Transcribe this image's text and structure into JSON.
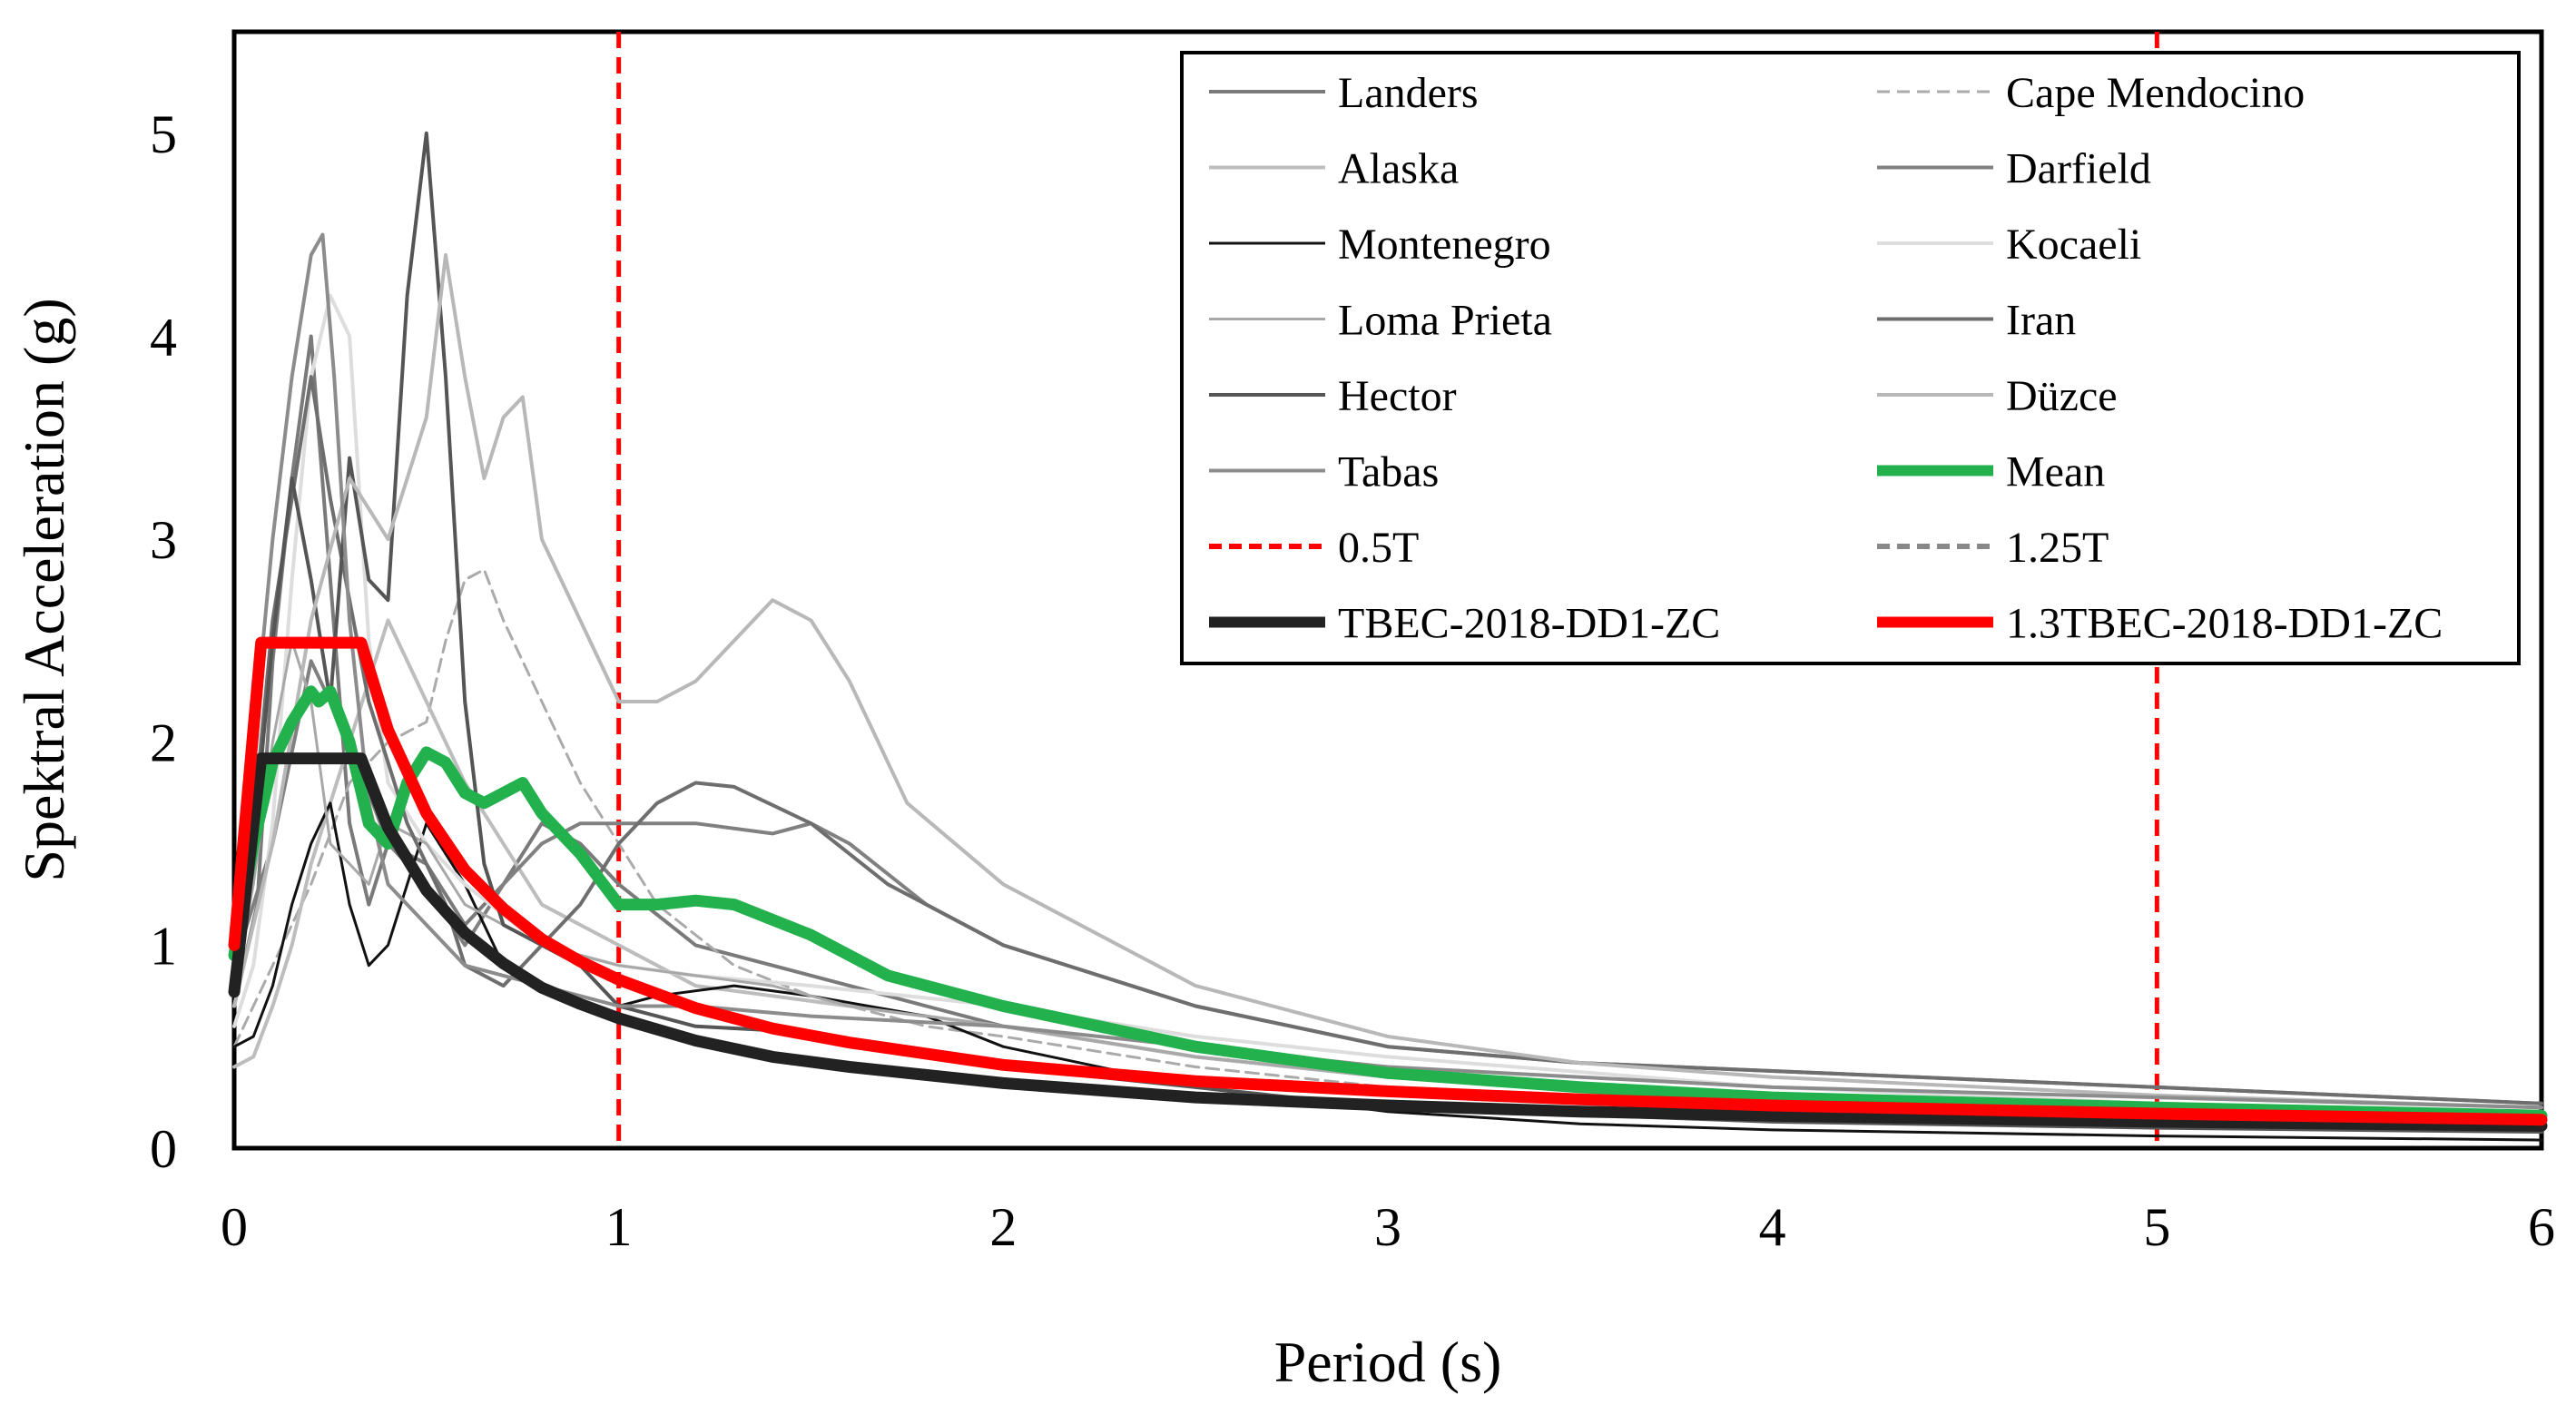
{
  "chart_data": {
    "type": "line",
    "title": "",
    "xlabel": "Period (s)",
    "ylabel": "Spektral Acceleration (g)",
    "xlim": [
      0,
      6
    ],
    "ylim": [
      0,
      5.5
    ],
    "xticks": [
      "0",
      "1",
      "2",
      "3",
      "4",
      "5",
      "6"
    ],
    "yticks": [
      "0",
      "1",
      "2",
      "3",
      "4",
      "5"
    ],
    "grid": false,
    "legend_position": "top-right",
    "vlines": [
      {
        "name": "0.5T",
        "x": 1,
        "color": "#ff0000",
        "dash": true
      },
      {
        "name": "1.25T",
        "x": 5,
        "color": "#ff0000",
        "dash": true
      }
    ],
    "series": [
      {
        "name": "Landers",
        "color": "#7a7a7a",
        "width": 4,
        "dash": false,
        "x": [
          0,
          0.06,
          0.1,
          0.15,
          0.2,
          0.25,
          0.3,
          0.35,
          0.4,
          0.5,
          0.6,
          0.7,
          0.8,
          0.9,
          1.0,
          1.2,
          1.4,
          1.6,
          1.8,
          2.0,
          2.5,
          3.0,
          3.5,
          4.0,
          5.0,
          6.0
        ],
        "values": [
          0.7,
          1.2,
          2.4,
          3.3,
          4.0,
          2.8,
          1.6,
          1.2,
          1.5,
          1.4,
          1.1,
          1.3,
          1.6,
          1.5,
          1.3,
          1.0,
          0.9,
          0.8,
          0.7,
          0.6,
          0.45,
          0.35,
          0.3,
          0.25,
          0.2,
          0.15
        ]
      },
      {
        "name": "Cape Mendocino",
        "color": "#aaaaaa",
        "width": 3,
        "dash": true,
        "x": [
          0,
          0.1,
          0.2,
          0.3,
          0.4,
          0.5,
          0.55,
          0.6,
          0.65,
          0.7,
          0.8,
          0.9,
          1.0,
          1.1,
          1.3,
          1.5,
          1.8,
          2.0,
          2.5,
          3.0,
          4.0,
          5.0,
          6.0
        ],
        "values": [
          0.5,
          0.9,
          1.3,
          1.8,
          2.0,
          2.1,
          2.5,
          2.8,
          2.85,
          2.6,
          2.2,
          1.8,
          1.5,
          1.2,
          0.9,
          0.75,
          0.6,
          0.55,
          0.4,
          0.3,
          0.2,
          0.12,
          0.08
        ]
      },
      {
        "name": "Alaska",
        "color": "#bdbdbd",
        "width": 4,
        "dash": false,
        "x": [
          0,
          0.05,
          0.1,
          0.15,
          0.2,
          0.3,
          0.4,
          0.5,
          0.6,
          0.8,
          1.0,
          1.2,
          1.4,
          1.6,
          2.0,
          2.5,
          3.0,
          4.0,
          5.0,
          6.0
        ],
        "values": [
          0.4,
          0.45,
          0.7,
          1.0,
          1.4,
          2.0,
          2.6,
          2.2,
          1.8,
          1.2,
          1.0,
          0.8,
          0.75,
          0.7,
          0.6,
          0.45,
          0.35,
          0.25,
          0.18,
          0.13
        ]
      },
      {
        "name": "Darfield",
        "color": "#808080",
        "width": 4,
        "dash": false,
        "x": [
          0,
          0.1,
          0.2,
          0.3,
          0.4,
          0.5,
          0.6,
          0.7,
          0.8,
          0.9,
          1.0,
          1.2,
          1.4,
          1.5,
          1.6,
          1.8,
          2.0,
          2.5,
          3.0,
          3.5,
          4.0,
          5.0,
          6.0
        ],
        "values": [
          0.9,
          1.5,
          2.4,
          2.0,
          1.5,
          1.3,
          1.0,
          1.3,
          1.5,
          1.6,
          1.6,
          1.6,
          1.55,
          1.6,
          1.5,
          1.2,
          1.0,
          0.7,
          0.5,
          0.42,
          0.38,
          0.3,
          0.22
        ]
      },
      {
        "name": "Montenegro",
        "color": "#111111",
        "width": 3,
        "dash": false,
        "x": [
          0,
          0.05,
          0.1,
          0.15,
          0.2,
          0.25,
          0.3,
          0.35,
          0.4,
          0.5,
          0.6,
          0.7,
          0.8,
          0.9,
          1.0,
          1.1,
          1.3,
          1.5,
          1.8,
          2.0,
          2.5,
          3.0,
          3.5,
          4.0,
          5.0,
          6.0
        ],
        "values": [
          0.5,
          0.55,
          0.8,
          1.2,
          1.5,
          1.7,
          1.2,
          0.9,
          1.0,
          1.6,
          1.3,
          0.9,
          0.8,
          0.75,
          0.7,
          0.75,
          0.8,
          0.75,
          0.65,
          0.5,
          0.3,
          0.18,
          0.12,
          0.09,
          0.06,
          0.04
        ]
      },
      {
        "name": "Kocaeli",
        "color": "#dddddd",
        "width": 4,
        "dash": false,
        "x": [
          0,
          0.05,
          0.1,
          0.15,
          0.2,
          0.25,
          0.3,
          0.35,
          0.4,
          0.5,
          0.6,
          0.8,
          1.0,
          1.2,
          1.5,
          2.0,
          2.5,
          3.0,
          4.0,
          5.0,
          6.0
        ],
        "values": [
          0.6,
          0.9,
          1.6,
          2.8,
          3.8,
          4.2,
          4.0,
          2.5,
          1.8,
          1.5,
          1.3,
          1.0,
          0.9,
          0.85,
          0.8,
          0.7,
          0.55,
          0.45,
          0.3,
          0.22,
          0.17
        ]
      },
      {
        "name": "Loma Prieta",
        "color": "#a8a8a8",
        "width": 3,
        "dash": false,
        "x": [
          0,
          0.05,
          0.1,
          0.15,
          0.2,
          0.25,
          0.3,
          0.35,
          0.4,
          0.5,
          0.6,
          0.7,
          0.8,
          0.9,
          1.0,
          1.2,
          1.4,
          1.6,
          2.0,
          2.5,
          3.0,
          4.0,
          5.0,
          6.0
        ],
        "values": [
          0.8,
          1.3,
          2.0,
          2.5,
          2.2,
          1.5,
          1.4,
          1.3,
          1.6,
          1.5,
          1.2,
          1.1,
          1.0,
          0.95,
          0.9,
          0.85,
          0.8,
          0.7,
          0.6,
          0.45,
          0.35,
          0.25,
          0.18,
          0.14
        ]
      },
      {
        "name": "Iran",
        "color": "#6e6e6e",
        "width": 4,
        "dash": false,
        "x": [
          0,
          0.06,
          0.1,
          0.15,
          0.2,
          0.25,
          0.3,
          0.35,
          0.4,
          0.45,
          0.5,
          0.55,
          0.6,
          0.7,
          0.8,
          0.9,
          1.0,
          1.1,
          1.2,
          1.3,
          1.5,
          1.7,
          2.0,
          2.5,
          3.0,
          3.5,
          4.0,
          5.0,
          6.0
        ],
        "values": [
          0.8,
          1.8,
          2.6,
          3.2,
          3.8,
          3.2,
          2.7,
          2.2,
          1.9,
          1.6,
          1.4,
          1.2,
          0.9,
          0.8,
          1.0,
          1.2,
          1.5,
          1.7,
          1.8,
          1.78,
          1.6,
          1.3,
          1.0,
          0.7,
          0.5,
          0.42,
          0.38,
          0.3,
          0.22
        ]
      },
      {
        "name": "Hector",
        "color": "#555555",
        "width": 4,
        "dash": false,
        "x": [
          0,
          0.05,
          0.1,
          0.15,
          0.2,
          0.25,
          0.3,
          0.35,
          0.4,
          0.45,
          0.5,
          0.55,
          0.6,
          0.65,
          0.7,
          0.8,
          0.9,
          1.0,
          1.1,
          1.2,
          1.4,
          1.6,
          2.0,
          2.5,
          3.0,
          4.0,
          5.0,
          6.0
        ],
        "values": [
          0.9,
          1.5,
          2.5,
          3.3,
          2.8,
          2.2,
          3.4,
          2.8,
          2.7,
          4.2,
          5.0,
          3.8,
          2.2,
          1.4,
          1.1,
          1.0,
          0.9,
          0.7,
          0.65,
          0.6,
          0.58,
          0.5,
          0.4,
          0.3,
          0.2,
          0.13,
          0.1,
          0.08
        ]
      },
      {
        "name": "Düzce",
        "color": "#b8b8b8",
        "width": 4,
        "dash": false,
        "x": [
          0,
          0.1,
          0.2,
          0.3,
          0.4,
          0.5,
          0.55,
          0.6,
          0.65,
          0.7,
          0.75,
          0.8,
          0.9,
          1.0,
          1.1,
          1.2,
          1.3,
          1.4,
          1.5,
          1.6,
          1.75,
          2.0,
          2.5,
          3.0,
          3.5,
          4.0,
          5.0,
          6.0
        ],
        "values": [
          0.7,
          1.5,
          2.6,
          3.3,
          3.0,
          3.6,
          4.4,
          3.8,
          3.3,
          3.6,
          3.7,
          3.0,
          2.6,
          2.2,
          2.2,
          2.3,
          2.5,
          2.7,
          2.6,
          2.3,
          1.7,
          1.3,
          0.8,
          0.55,
          0.42,
          0.35,
          0.26,
          0.2
        ]
      },
      {
        "name": "Tabas",
        "color": "#8c8c8c",
        "width": 4,
        "dash": false,
        "x": [
          0,
          0.05,
          0.1,
          0.15,
          0.2,
          0.23,
          0.26,
          0.3,
          0.35,
          0.4,
          0.5,
          0.6,
          0.7,
          0.8,
          0.9,
          1.0,
          1.2,
          1.5,
          2.0,
          2.5,
          3.0,
          4.0,
          5.0,
          6.0
        ],
        "values": [
          1.0,
          2.0,
          3.0,
          3.8,
          4.4,
          4.5,
          3.8,
          2.6,
          1.7,
          1.3,
          1.1,
          0.9,
          0.85,
          0.8,
          0.75,
          0.7,
          0.7,
          0.65,
          0.6,
          0.5,
          0.4,
          0.3,
          0.25,
          0.2
        ]
      },
      {
        "name": "Mean",
        "color": "#22b14c",
        "width": 13,
        "dash": false,
        "x": [
          0,
          0.05,
          0.1,
          0.15,
          0.2,
          0.22,
          0.25,
          0.3,
          0.35,
          0.4,
          0.45,
          0.5,
          0.55,
          0.6,
          0.65,
          0.7,
          0.75,
          0.8,
          0.9,
          1.0,
          1.1,
          1.2,
          1.3,
          1.5,
          1.7,
          2.0,
          2.5,
          3.0,
          3.5,
          4.0,
          5.0,
          6.0
        ],
        "values": [
          0.95,
          1.5,
          1.9,
          2.1,
          2.25,
          2.2,
          2.25,
          2.0,
          1.6,
          1.5,
          1.8,
          1.95,
          1.9,
          1.75,
          1.7,
          1.75,
          1.8,
          1.65,
          1.45,
          1.2,
          1.2,
          1.22,
          1.2,
          1.05,
          0.85,
          0.7,
          0.5,
          0.37,
          0.3,
          0.25,
          0.2,
          0.16
        ]
      },
      {
        "name": "0.5T",
        "legend_only": true,
        "color": "#ff0000",
        "width": 6,
        "dash": true
      },
      {
        "name": "1.25T",
        "legend_only": true,
        "color": "#888888",
        "width": 6,
        "dash": true
      },
      {
        "name": "TBEC-2018-DD1-ZC",
        "color": "#222222",
        "width": 13,
        "dash": false,
        "x": [
          0,
          0.07,
          0.1,
          0.2,
          0.33,
          0.4,
          0.5,
          0.6,
          0.7,
          0.8,
          0.9,
          1.0,
          1.2,
          1.4,
          1.6,
          2.0,
          2.5,
          3.0,
          3.5,
          4.0,
          5.0,
          6.0
        ],
        "values": [
          0.77,
          1.92,
          1.92,
          1.92,
          1.92,
          1.58,
          1.27,
          1.06,
          0.91,
          0.79,
          0.71,
          0.64,
          0.53,
          0.45,
          0.4,
          0.32,
          0.25,
          0.21,
          0.18,
          0.16,
          0.13,
          0.11
        ]
      },
      {
        "name": "1.3TBEC-2018-DD1-ZC",
        "color": "#ff0000",
        "width": 13,
        "dash": false,
        "x": [
          0,
          0.07,
          0.1,
          0.2,
          0.33,
          0.4,
          0.5,
          0.6,
          0.7,
          0.8,
          0.9,
          1.0,
          1.2,
          1.4,
          1.6,
          2.0,
          2.5,
          3.0,
          3.5,
          4.0,
          5.0,
          6.0
        ],
        "values": [
          1.0,
          2.49,
          2.49,
          2.49,
          2.49,
          2.06,
          1.65,
          1.37,
          1.18,
          1.03,
          0.92,
          0.83,
          0.69,
          0.59,
          0.52,
          0.41,
          0.33,
          0.28,
          0.24,
          0.21,
          0.17,
          0.14
        ]
      }
    ]
  }
}
